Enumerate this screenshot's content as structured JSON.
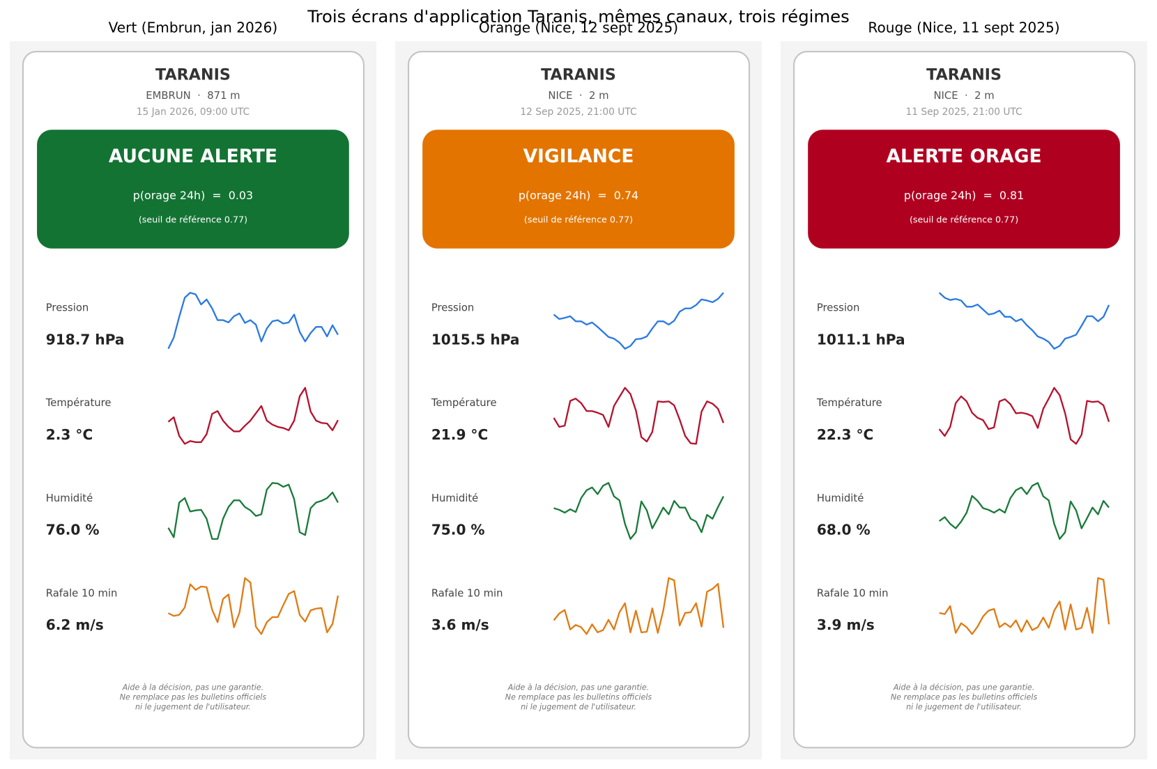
{
  "title": "Trois écrans d'application Taranis, mêmes canaux, trois régimes",
  "panels": [
    {
      "heading": "Vert (Embrun, jan 2026)",
      "app_name": "TARANIS",
      "station": "EMBRUN  ·  871 m",
      "datetime": "15 Jan 2026, 09:00 UTC",
      "alert": {
        "color": "#137333",
        "title": "AUCUNE ALERTE",
        "probability": "p(orage 24h)  =  0.03",
        "threshold": "(seuil de référence 0.77)"
      },
      "metrics": [
        {
          "label": "Pression",
          "value": "918.7 hPa",
          "color": "#2a7ae2",
          "series": [
            0,
            20,
            57,
            91,
            100,
            97,
            79,
            88,
            72,
            51,
            51,
            47,
            58,
            63,
            46,
            51,
            43,
            13,
            36,
            49,
            51,
            45,
            47,
            61,
            30,
            13,
            28,
            39,
            39,
            22,
            42,
            25
          ]
        },
        {
          "label": "Température",
          "value": "2.3 °C",
          "color": "#b5122e",
          "series": [
            39,
            47,
            14,
            0,
            5,
            3,
            3,
            17,
            53,
            58,
            41,
            30,
            22,
            22,
            32,
            41,
            54,
            67,
            41,
            34,
            30,
            28,
            24,
            41,
            84,
            99,
            57,
            41,
            37,
            36,
            24,
            42
          ]
        },
        {
          "label": "Humidité",
          "value": "76.0 %",
          "color": "#1a7a3a",
          "series": [
            20,
            3,
            65,
            73,
            49,
            51,
            52,
            36,
            0,
            0,
            36,
            57,
            69,
            69,
            57,
            51,
            41,
            44,
            88,
            100,
            99,
            93,
            97,
            71,
            12,
            7,
            55,
            65,
            68,
            73,
            83,
            65
          ]
        },
        {
          "label": "Rafale 10 min",
          "value": "6.2 m/s",
          "color": "#e07b14",
          "series": [
            37,
            32,
            34,
            47,
            88,
            78,
            84,
            83,
            43,
            21,
            62,
            70,
            12,
            38,
            99,
            91,
            13,
            0,
            21,
            30,
            30,
            51,
            71,
            76,
            34,
            22,
            42,
            45,
            46,
            3,
            18,
            68
          ]
        }
      ],
      "disclaimer": [
        "Aide à la décision, pas une garantie.",
        "Ne remplace pas les bulletins officiels",
        "ni le jugement de l'utilisateur."
      ]
    },
    {
      "heading": "Orange (Nice, 12 sept 2025)",
      "app_name": "TARANIS",
      "station": "NICE  ·  2 m",
      "datetime": "12 Sep 2025, 21:00 UTC",
      "alert": {
        "color": "#e37400",
        "title": "VIGILANCE",
        "probability": "p(orage 24h)  =  0.74",
        "threshold": "(seuil de référence 0.77)"
      },
      "metrics": [
        {
          "label": "Pression",
          "value": "1015.5 hPa",
          "color": "#2a7ae2",
          "series": [
            61,
            53,
            55,
            58,
            49,
            49,
            43,
            47,
            39,
            30,
            21,
            18,
            11,
            0,
            5,
            17,
            18,
            22,
            36,
            49,
            49,
            43,
            50,
            66,
            72,
            72,
            78,
            88,
            86,
            83,
            89,
            100
          ]
        },
        {
          "label": "Température",
          "value": "21.9 °C",
          "color": "#b5122e",
          "series": [
            46,
            30,
            32,
            76,
            80,
            72,
            58,
            58,
            55,
            51,
            30,
            67,
            83,
            99,
            88,
            59,
            12,
            4,
            21,
            75,
            74,
            75,
            68,
            43,
            14,
            1,
            0,
            57,
            75,
            71,
            62,
            37
          ]
        },
        {
          "label": "Humidité",
          "value": "75.0 %",
          "color": "#1a7a3a",
          "series": [
            55,
            52,
            47,
            53,
            48,
            73,
            87,
            92,
            80,
            95,
            100,
            76,
            69,
            27,
            0,
            12,
            67,
            51,
            19,
            37,
            56,
            44,
            68,
            56,
            56,
            36,
            31,
            12,
            43,
            36,
            57,
            76
          ]
        },
        {
          "label": "Rafale 10 min",
          "value": "3.6 m/s",
          "color": "#e07b14",
          "series": [
            25,
            37,
            43,
            9,
            17,
            13,
            1,
            18,
            4,
            8,
            26,
            9,
            39,
            55,
            4,
            42,
            4,
            5,
            46,
            3,
            42,
            99,
            95,
            16,
            38,
            39,
            55,
            14,
            75,
            80,
            89,
            12
          ]
        }
      ],
      "disclaimer": [
        "Aide à la décision, pas une garantie.",
        "Ne remplace pas les bulletins officiels",
        "ni le jugement de l'utilisateur."
      ]
    },
    {
      "heading": "Rouge (Nice, 11 sept 2025)",
      "app_name": "TARANIS",
      "station": "NICE  ·  2 m",
      "datetime": "11 Sep 2025, 21:00 UTC",
      "alert": {
        "color": "#b00020",
        "title": "ALERTE ORAGE",
        "probability": "p(orage 24h)  =  0.81",
        "threshold": "(seuil de référence 0.77)"
      },
      "metrics": [
        {
          "label": "Pression",
          "value": "1011.1 hPa",
          "color": "#2a7ae2",
          "series": [
            100,
            91,
            87,
            89,
            86,
            75,
            75,
            79,
            70,
            61,
            63,
            68,
            57,
            57,
            49,
            53,
            42,
            33,
            22,
            18,
            12,
            0,
            5,
            18,
            21,
            25,
            41,
            58,
            58,
            49,
            57,
            78
          ]
        },
        {
          "label": "Température",
          "value": "22.3 °C",
          "color": "#b5122e",
          "series": [
            26,
            14,
            30,
            72,
            84,
            75,
            55,
            46,
            42,
            26,
            29,
            75,
            79,
            70,
            54,
            55,
            53,
            49,
            28,
            62,
            80,
            99,
            86,
            54,
            8,
            0,
            16,
            76,
            74,
            75,
            68,
            39
          ]
        },
        {
          "label": "Humidité",
          "value": "68.0 %",
          "color": "#1a7a3a",
          "series": [
            32,
            39,
            27,
            19,
            31,
            47,
            77,
            68,
            55,
            52,
            47,
            53,
            47,
            73,
            87,
            92,
            80,
            95,
            100,
            76,
            69,
            27,
            0,
            12,
            67,
            51,
            19,
            37,
            56,
            44,
            68,
            56
          ]
        },
        {
          "label": "Rafale 10 min",
          "value": "3.9 m/s",
          "color": "#e07b14",
          "series": [
            38,
            36,
            50,
            3,
            20,
            13,
            1,
            14,
            32,
            42,
            45,
            13,
            20,
            13,
            25,
            5,
            25,
            8,
            13,
            30,
            12,
            42,
            58,
            9,
            53,
            9,
            12,
            47,
            3,
            99,
            96,
            18
          ]
        }
      ],
      "disclaimer": [
        "Aide à la décision, pas une garantie.",
        "Ne remplace pas les bulletins officiels",
        "ni le jugement de l'utilisateur."
      ]
    }
  ]
}
